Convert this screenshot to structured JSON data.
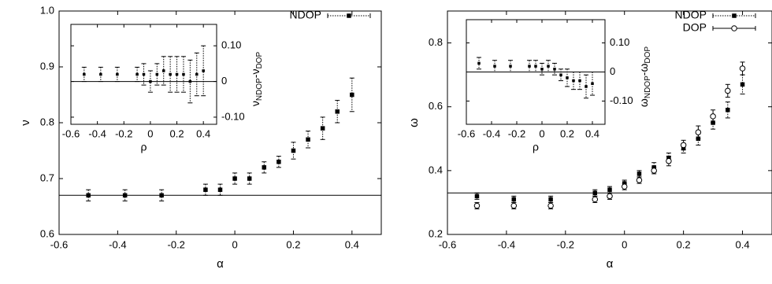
{
  "chart_data": [
    {
      "type": "scatter",
      "xlabel": "α",
      "ylabel": "ν",
      "xlim": [
        -0.6,
        0.5
      ],
      "ylim": [
        0.6,
        1.0
      ],
      "xticks": [
        "-0.6",
        "-0.4",
        "-0.2",
        "0",
        "0.2",
        "0.4"
      ],
      "yticks": [
        "0.6",
        "0.7",
        "0.8",
        "0.9",
        "1.0"
      ],
      "reference_line_y": 0.67,
      "legend": {
        "entries": [
          "NDOP"
        ],
        "placement": "top-right"
      },
      "series": [
        {
          "name": "NDOP",
          "marker": "filled-square",
          "x": [
            -0.5,
            -0.375,
            -0.25,
            -0.1,
            -0.05,
            0.0,
            0.05,
            0.1,
            0.15,
            0.2,
            0.25,
            0.3,
            0.35,
            0.4
          ],
          "y": [
            0.67,
            0.67,
            0.67,
            0.68,
            0.68,
            0.7,
            0.7,
            0.72,
            0.73,
            0.75,
            0.77,
            0.79,
            0.82,
            0.85
          ],
          "err": [
            0.01,
            0.01,
            0.01,
            0.01,
            0.01,
            0.01,
            0.01,
            0.01,
            0.01,
            0.015,
            0.015,
            0.02,
            0.02,
            0.03
          ]
        }
      ],
      "inset": {
        "xlabel": "ρ",
        "ylabel": "νNDOP-νDOP",
        "ylabel_main": "ν",
        "ylabel_sub": "NDOP",
        "ylabel_sep": "-ν",
        "ylabel_sub2": "DOP",
        "xlim": [
          -0.6,
          0.5
        ],
        "ylim": [
          -0.12,
          0.16
        ],
        "xticks": [
          "-0.6",
          "-0.4",
          "-0.2",
          "0",
          "0.2",
          "0.4"
        ],
        "yticks": [
          "0.10",
          "0",
          "-0.10"
        ],
        "reference_line_y": 0,
        "series": [
          {
            "x": [
              -0.5,
              -0.375,
              -0.25,
              -0.1,
              -0.05,
              0.0,
              0.05,
              0.1,
              0.15,
              0.2,
              0.25,
              0.3,
              0.35,
              0.4
            ],
            "y": [
              0.02,
              0.02,
              0.02,
              0.02,
              0.02,
              0.0,
              0.02,
              0.03,
              0.02,
              0.02,
              0.02,
              0.0,
              0.02,
              0.03
            ],
            "err": [
              0.02,
              0.02,
              0.02,
              0.02,
              0.03,
              0.03,
              0.03,
              0.04,
              0.05,
              0.05,
              0.05,
              0.06,
              0.06,
              0.07
            ]
          }
        ]
      }
    },
    {
      "type": "scatter",
      "xlabel": "α",
      "ylabel": "ω",
      "xlim": [
        -0.6,
        0.5
      ],
      "ylim": [
        0.2,
        0.9
      ],
      "xticks": [
        "-0.6",
        "-0.4",
        "-0.2",
        "0",
        "0.2",
        "0.4"
      ],
      "yticks": [
        "0.2",
        "0.4",
        "0.6",
        "0.8"
      ],
      "reference_line_y": 0.33,
      "legend": {
        "entries": [
          "NDOP",
          "DOP"
        ],
        "placement": "top-right"
      },
      "series": [
        {
          "name": "NDOP",
          "marker": "filled-square",
          "x": [
            -0.5,
            -0.375,
            -0.25,
            -0.1,
            -0.05,
            0.0,
            0.05,
            0.1,
            0.15,
            0.2,
            0.25,
            0.3,
            0.35,
            0.4
          ],
          "y": [
            0.32,
            0.31,
            0.31,
            0.33,
            0.34,
            0.36,
            0.39,
            0.41,
            0.44,
            0.47,
            0.5,
            0.55,
            0.59,
            0.67
          ],
          "err": [
            0.01,
            0.01,
            0.01,
            0.01,
            0.01,
            0.01,
            0.01,
            0.015,
            0.015,
            0.015,
            0.02,
            0.02,
            0.025,
            0.03
          ]
        },
        {
          "name": "DOP",
          "marker": "open-circle",
          "x": [
            -0.5,
            -0.375,
            -0.25,
            -0.1,
            -0.05,
            0.0,
            0.05,
            0.1,
            0.15,
            0.2,
            0.25,
            0.3,
            0.35,
            0.4
          ],
          "y": [
            0.29,
            0.29,
            0.29,
            0.31,
            0.32,
            0.35,
            0.37,
            0.4,
            0.43,
            0.48,
            0.52,
            0.57,
            0.65,
            0.72
          ],
          "err": [
            0.01,
            0.01,
            0.01,
            0.01,
            0.01,
            0.01,
            0.01,
            0.01,
            0.015,
            0.015,
            0.02,
            0.02,
            0.02,
            0.02
          ]
        }
      ],
      "inset": {
        "xlabel": "ρ",
        "ylabel": "ωNDOP-ωDOP",
        "ylabel_main": "ω",
        "ylabel_sub": "NDOP",
        "ylabel_sep": "-ω",
        "ylabel_sub2": "DOP",
        "xlim": [
          -0.6,
          0.5
        ],
        "ylim": [
          -0.18,
          0.18
        ],
        "xticks": [
          "-0.6",
          "-0.4",
          "-0.2",
          "0",
          "0.2",
          "0.4"
        ],
        "yticks": [
          "0.10",
          "0",
          "-0.10"
        ],
        "reference_line_y": 0,
        "series": [
          {
            "x": [
              -0.5,
              -0.375,
              -0.25,
              -0.1,
              -0.05,
              0.0,
              0.05,
              0.1,
              0.15,
              0.2,
              0.25,
              0.3,
              0.35,
              0.4
            ],
            "y": [
              0.03,
              0.02,
              0.02,
              0.02,
              0.02,
              0.01,
              0.02,
              0.01,
              -0.01,
              -0.02,
              -0.03,
              -0.03,
              -0.05,
              -0.04
            ],
            "err": [
              0.02,
              0.02,
              0.02,
              0.02,
              0.02,
              0.02,
              0.02,
              0.02,
              0.02,
              0.03,
              0.03,
              0.03,
              0.04,
              0.04
            ]
          }
        ]
      }
    }
  ]
}
